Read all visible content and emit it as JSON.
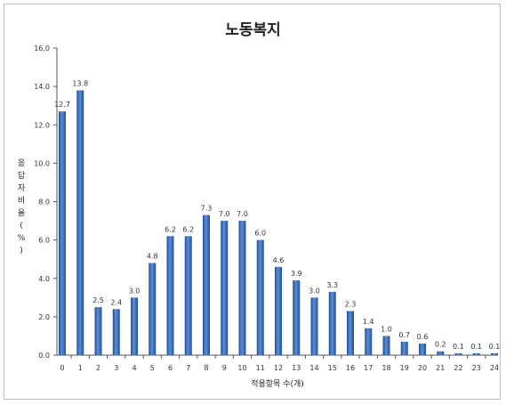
{
  "chart_data": {
    "type": "bar",
    "title": "노동복지",
    "xlabel": "적용항목 수(개)",
    "ylabel": "응답자비율(%)",
    "ylim": [
      0,
      16
    ],
    "yticks": [
      "0.0",
      "2.0",
      "4.0",
      "6.0",
      "8.0",
      "10.0",
      "12.0",
      "14.0",
      "16.0"
    ],
    "categories": [
      "0",
      "1",
      "2",
      "3",
      "4",
      "5",
      "6",
      "7",
      "8",
      "9",
      "10",
      "11",
      "12",
      "13",
      "14",
      "15",
      "16",
      "17",
      "18",
      "19",
      "20",
      "21",
      "22",
      "23",
      "24"
    ],
    "values": [
      12.7,
      13.8,
      2.5,
      2.4,
      3.0,
      4.8,
      6.2,
      6.2,
      7.3,
      7.0,
      7.0,
      6.0,
      4.6,
      3.9,
      3.0,
      3.3,
      2.3,
      1.4,
      1.0,
      0.7,
      0.6,
      0.2,
      0.1,
      0.1,
      0.1
    ],
    "value_labels": [
      "12.7",
      "13.8",
      "2.5",
      "2.4",
      "3.0",
      "4.8",
      "6.2",
      "6.2",
      "7.3",
      "7.0",
      "7.0",
      "6.0",
      "4.6",
      "3.9",
      "3.0",
      "3.3",
      "2.3",
      "1.4",
      "1.0",
      "0.7",
      "0.6",
      "0.2",
      "0.1",
      "0.1",
      "0.1"
    ],
    "grid": false,
    "legend": "none",
    "bar_color": "#3a6fc0"
  }
}
